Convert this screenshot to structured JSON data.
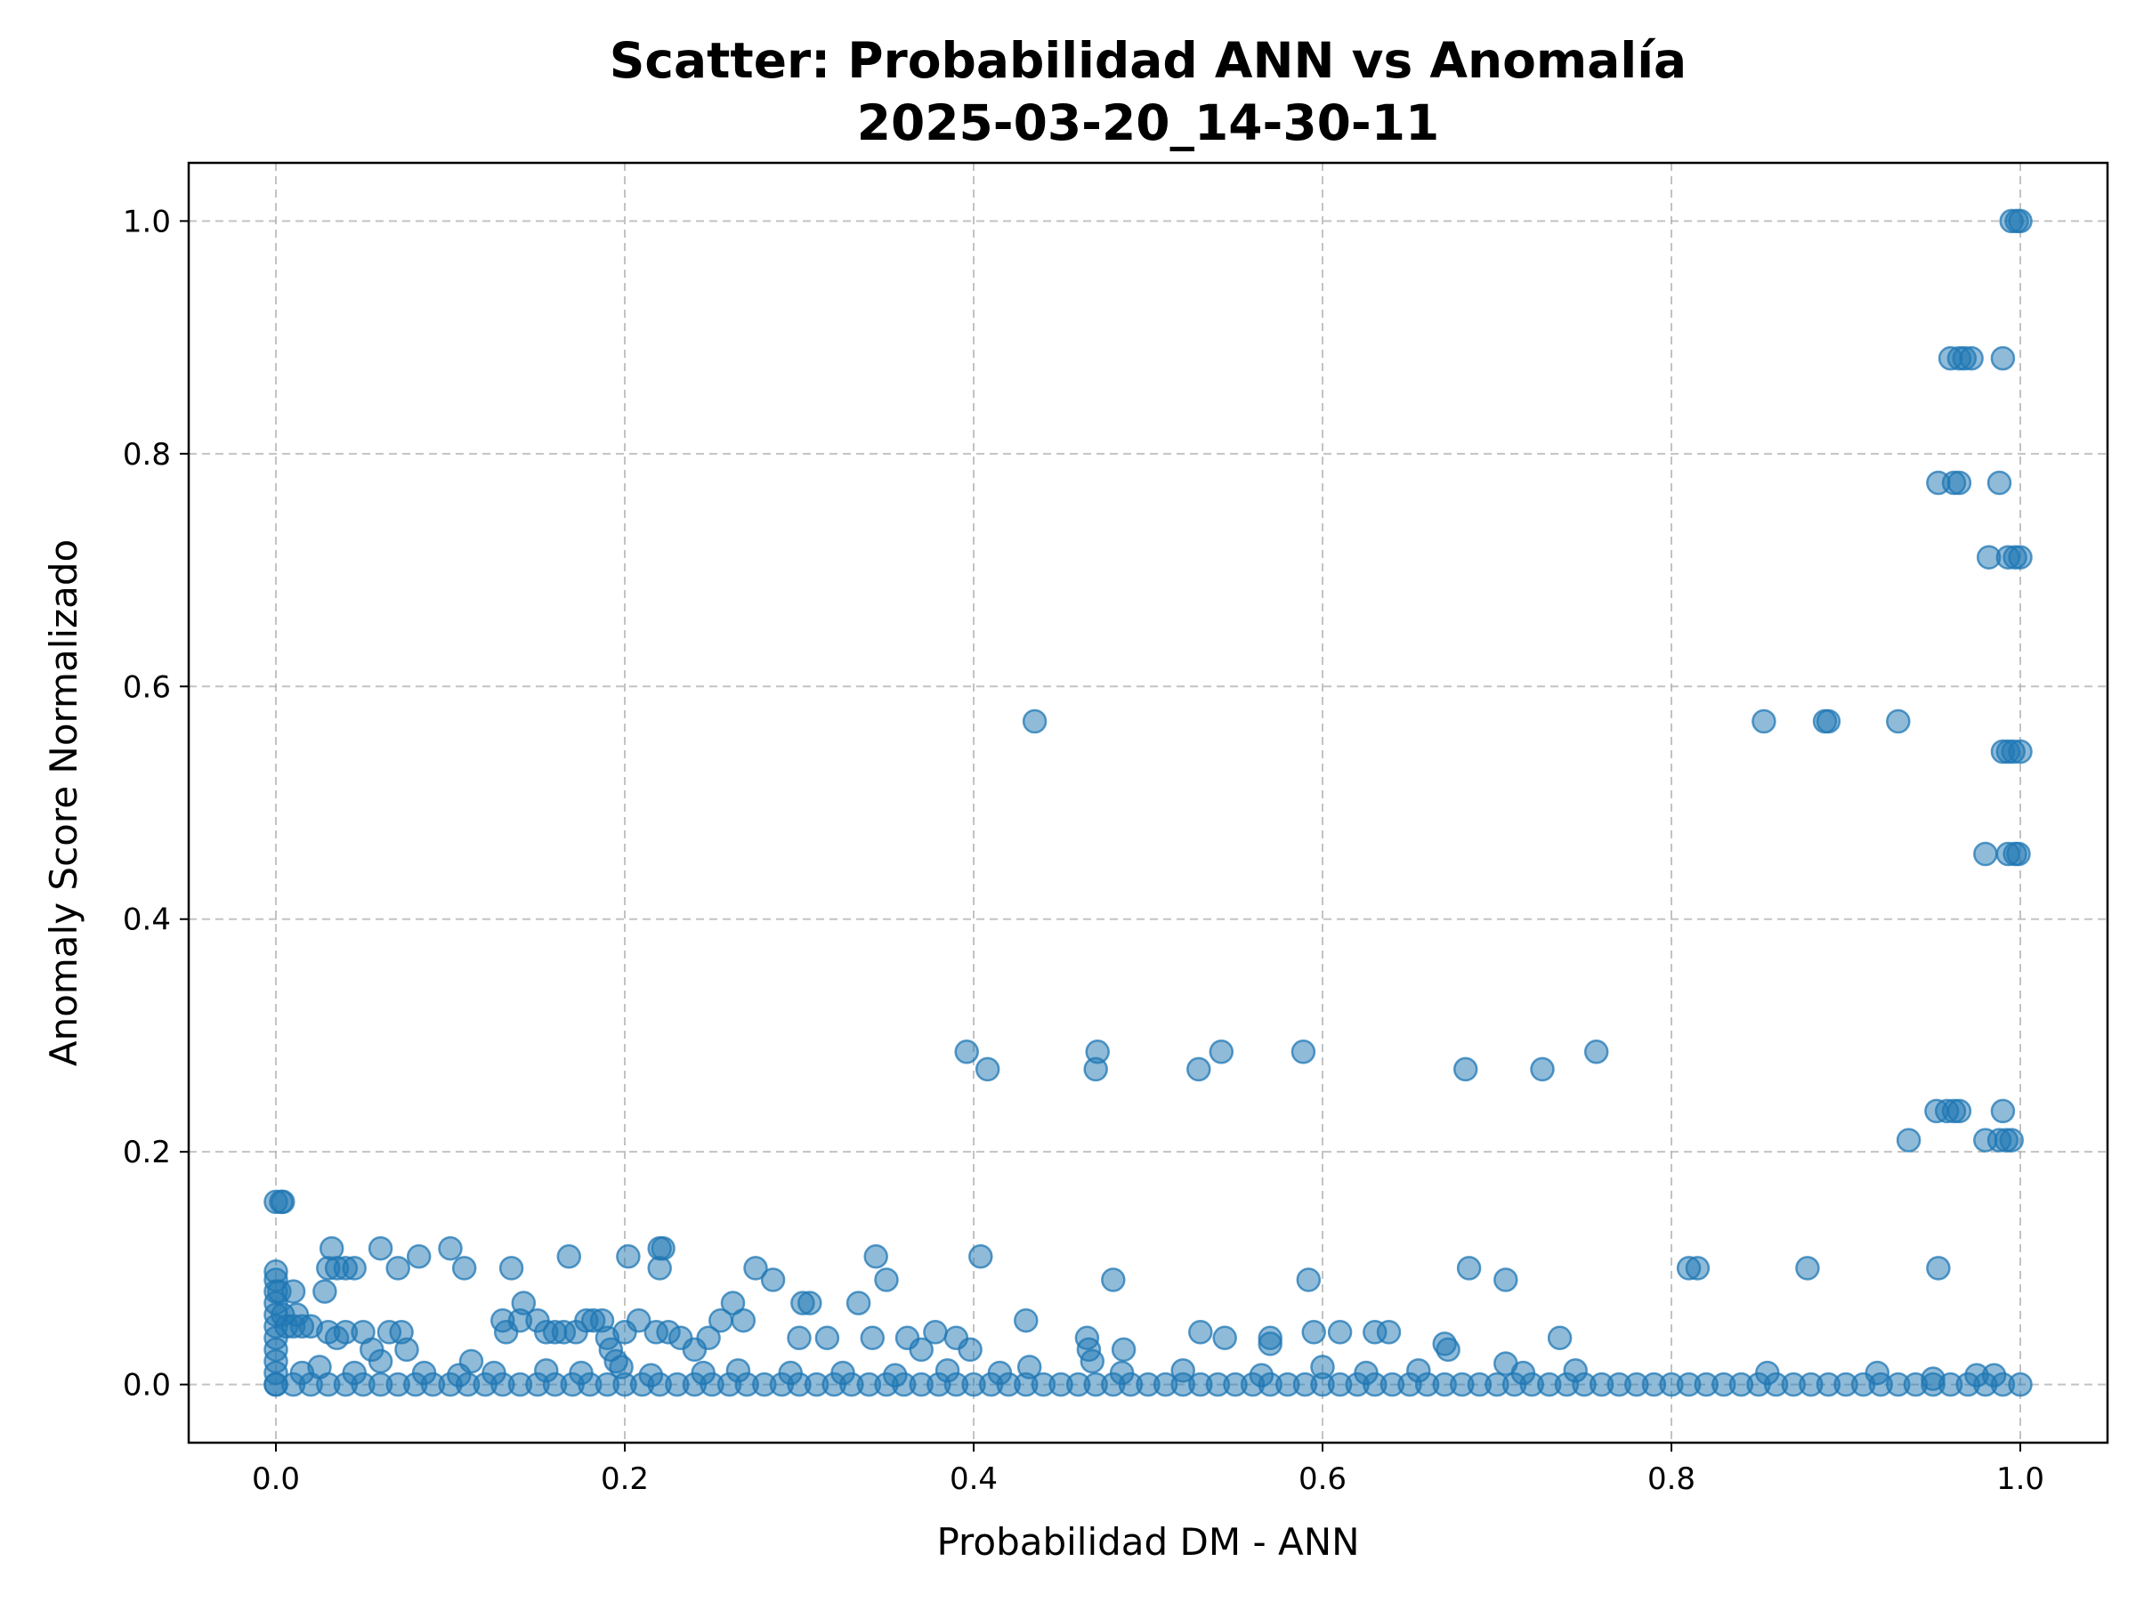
{
  "chart_data": {
    "type": "scatter",
    "title": "Scatter: Probabilidad ANN vs Anomalía",
    "subtitle": "2025-03-20_14-30-11",
    "xlabel": "Probabilidad DM - ANN",
    "ylabel": "Anomaly Score Normalizado",
    "xlim": [
      -0.05,
      1.05
    ],
    "ylim": [
      -0.05,
      1.05
    ],
    "x_ticks": [
      0.0,
      0.2,
      0.4,
      0.6,
      0.8,
      1.0
    ],
    "x_tick_labels": [
      "0.0",
      "0.2",
      "0.4",
      "0.6",
      "0.8",
      "1.0"
    ],
    "y_ticks": [
      0.0,
      0.2,
      0.4,
      0.6,
      0.8,
      1.0
    ],
    "y_tick_labels": [
      "0.0",
      "0.2",
      "0.4",
      "0.6",
      "0.8",
      "1.0"
    ],
    "grid": true,
    "point_color": "#1f77b4",
    "point_alpha": 0.5,
    "series": [
      {
        "points": [
          [
            0.0,
            0.157
          ],
          [
            0.003,
            0.157
          ],
          [
            0.004,
            0.157
          ],
          [
            0.0,
            0.097
          ],
          [
            0.0,
            0.09
          ],
          [
            0.0,
            0.08
          ],
          [
            0.0,
            0.07
          ],
          [
            0.0,
            0.06
          ],
          [
            0.0,
            0.05
          ],
          [
            0.0,
            0.04
          ],
          [
            0.0,
            0.03
          ],
          [
            0.0,
            0.02
          ],
          [
            0.0,
            0.01
          ],
          [
            0.0,
            0.0
          ],
          [
            0.002,
            0.08
          ],
          [
            0.004,
            0.06
          ],
          [
            0.006,
            0.05
          ],
          [
            0.01,
            0.08
          ],
          [
            0.01,
            0.05
          ],
          [
            0.012,
            0.06
          ],
          [
            0.015,
            0.05
          ],
          [
            0.02,
            0.05
          ],
          [
            0.028,
            0.08
          ],
          [
            0.03,
            0.1
          ],
          [
            0.032,
            0.117
          ],
          [
            0.035,
            0.1
          ],
          [
            0.04,
            0.1
          ],
          [
            0.045,
            0.1
          ],
          [
            0.03,
            0.045
          ],
          [
            0.035,
            0.04
          ],
          [
            0.04,
            0.045
          ],
          [
            0.05,
            0.045
          ],
          [
            0.055,
            0.03
          ],
          [
            0.06,
            0.117
          ],
          [
            0.065,
            0.045
          ],
          [
            0.07,
            0.1
          ],
          [
            0.072,
            0.045
          ],
          [
            0.075,
            0.03
          ],
          [
            0.082,
            0.11
          ],
          [
            0.1,
            0.117
          ],
          [
            0.108,
            0.1
          ],
          [
            0.112,
            0.02
          ],
          [
            0.13,
            0.055
          ],
          [
            0.132,
            0.045
          ],
          [
            0.135,
            0.1
          ],
          [
            0.14,
            0.055
          ],
          [
            0.142,
            0.07
          ],
          [
            0.15,
            0.055
          ],
          [
            0.155,
            0.045
          ],
          [
            0.16,
            0.045
          ],
          [
            0.165,
            0.045
          ],
          [
            0.168,
            0.11
          ],
          [
            0.172,
            0.045
          ],
          [
            0.178,
            0.055
          ],
          [
            0.182,
            0.055
          ],
          [
            0.187,
            0.055
          ],
          [
            0.19,
            0.04
          ],
          [
            0.192,
            0.03
          ],
          [
            0.195,
            0.02
          ],
          [
            0.2,
            0.045
          ],
          [
            0.202,
            0.11
          ],
          [
            0.208,
            0.055
          ],
          [
            0.218,
            0.045
          ],
          [
            0.22,
            0.117
          ],
          [
            0.22,
            0.1
          ],
          [
            0.222,
            0.117
          ],
          [
            0.225,
            0.045
          ],
          [
            0.232,
            0.04
          ],
          [
            0.24,
            0.03
          ],
          [
            0.248,
            0.04
          ],
          [
            0.255,
            0.055
          ],
          [
            0.262,
            0.07
          ],
          [
            0.268,
            0.055
          ],
          [
            0.275,
            0.1
          ],
          [
            0.285,
            0.09
          ],
          [
            0.3,
            0.04
          ],
          [
            0.302,
            0.07
          ],
          [
            0.306,
            0.07
          ],
          [
            0.316,
            0.04
          ],
          [
            0.334,
            0.07
          ],
          [
            0.342,
            0.04
          ],
          [
            0.344,
            0.11
          ],
          [
            0.35,
            0.09
          ],
          [
            0.362,
            0.04
          ],
          [
            0.37,
            0.03
          ],
          [
            0.378,
            0.045
          ],
          [
            0.39,
            0.04
          ],
          [
            0.398,
            0.03
          ],
          [
            0.404,
            0.11
          ],
          [
            0.43,
            0.055
          ],
          [
            0.465,
            0.04
          ],
          [
            0.466,
            0.03
          ],
          [
            0.48,
            0.09
          ],
          [
            0.486,
            0.03
          ],
          [
            0.53,
            0.045
          ],
          [
            0.544,
            0.04
          ],
          [
            0.57,
            0.04
          ],
          [
            0.57,
            0.035
          ],
          [
            0.592,
            0.09
          ],
          [
            0.595,
            0.045
          ],
          [
            0.61,
            0.045
          ],
          [
            0.63,
            0.045
          ],
          [
            0.638,
            0.045
          ],
          [
            0.67,
            0.035
          ],
          [
            0.672,
            0.03
          ],
          [
            0.684,
            0.1
          ],
          [
            0.705,
            0.09
          ],
          [
            0.736,
            0.04
          ],
          [
            0.81,
            0.1
          ],
          [
            0.815,
            0.1
          ],
          [
            0.878,
            0.1
          ],
          [
            0.953,
            0.1
          ],
          [
            0.396,
            0.286
          ],
          [
            0.408,
            0.271
          ],
          [
            0.471,
            0.286
          ],
          [
            0.47,
            0.271
          ],
          [
            0.529,
            0.271
          ],
          [
            0.542,
            0.286
          ],
          [
            0.589,
            0.286
          ],
          [
            0.682,
            0.271
          ],
          [
            0.726,
            0.271
          ],
          [
            0.757,
            0.286
          ],
          [
            0.435,
            0.57
          ],
          [
            0.853,
            0.57
          ],
          [
            0.888,
            0.57
          ],
          [
            0.89,
            0.57
          ],
          [
            0.93,
            0.57
          ],
          [
            0.936,
            0.21
          ],
          [
            0.952,
            0.235
          ],
          [
            0.958,
            0.235
          ],
          [
            0.962,
            0.235
          ],
          [
            0.965,
            0.235
          ],
          [
            0.98,
            0.21
          ],
          [
            0.988,
            0.21
          ],
          [
            0.99,
            0.235
          ],
          [
            0.992,
            0.21
          ],
          [
            0.995,
            0.21
          ],
          [
            0.98,
            0.456
          ],
          [
            0.993,
            0.456
          ],
          [
            0.997,
            0.456
          ],
          [
            0.999,
            0.456
          ],
          [
            0.99,
            0.544
          ],
          [
            0.993,
            0.544
          ],
          [
            0.996,
            0.544
          ],
          [
            1.0,
            0.544
          ],
          [
            0.982,
            0.711
          ],
          [
            0.993,
            0.711
          ],
          [
            0.997,
            0.711
          ],
          [
            1.0,
            0.711
          ],
          [
            0.953,
            0.775
          ],
          [
            0.962,
            0.775
          ],
          [
            0.965,
            0.775
          ],
          [
            0.988,
            0.775
          ],
          [
            0.96,
            0.882
          ],
          [
            0.965,
            0.882
          ],
          [
            0.968,
            0.882
          ],
          [
            0.972,
            0.882
          ],
          [
            0.99,
            0.882
          ],
          [
            0.995,
            1.0
          ],
          [
            0.998,
            1.0
          ],
          [
            1.0,
            1.0
          ],
          [
            0.0,
            0.0
          ],
          [
            0.01,
            0.0
          ],
          [
            0.02,
            0.0
          ],
          [
            0.03,
            0.0
          ],
          [
            0.04,
            0.0
          ],
          [
            0.05,
            0.0
          ],
          [
            0.06,
            0.0
          ],
          [
            0.07,
            0.0
          ],
          [
            0.08,
            0.0
          ],
          [
            0.09,
            0.0
          ],
          [
            0.1,
            0.0
          ],
          [
            0.11,
            0.0
          ],
          [
            0.12,
            0.0
          ],
          [
            0.13,
            0.0
          ],
          [
            0.14,
            0.0
          ],
          [
            0.15,
            0.0
          ],
          [
            0.16,
            0.0
          ],
          [
            0.17,
            0.0
          ],
          [
            0.18,
            0.0
          ],
          [
            0.19,
            0.0
          ],
          [
            0.2,
            0.0
          ],
          [
            0.21,
            0.0
          ],
          [
            0.22,
            0.0
          ],
          [
            0.23,
            0.0
          ],
          [
            0.24,
            0.0
          ],
          [
            0.25,
            0.0
          ],
          [
            0.26,
            0.0
          ],
          [
            0.27,
            0.0
          ],
          [
            0.28,
            0.0
          ],
          [
            0.29,
            0.0
          ],
          [
            0.3,
            0.0
          ],
          [
            0.31,
            0.0
          ],
          [
            0.32,
            0.0
          ],
          [
            0.33,
            0.0
          ],
          [
            0.34,
            0.0
          ],
          [
            0.35,
            0.0
          ],
          [
            0.36,
            0.0
          ],
          [
            0.37,
            0.0
          ],
          [
            0.38,
            0.0
          ],
          [
            0.39,
            0.0
          ],
          [
            0.4,
            0.0
          ],
          [
            0.41,
            0.0
          ],
          [
            0.42,
            0.0
          ],
          [
            0.43,
            0.0
          ],
          [
            0.44,
            0.0
          ],
          [
            0.45,
            0.0
          ],
          [
            0.46,
            0.0
          ],
          [
            0.47,
            0.0
          ],
          [
            0.48,
            0.0
          ],
          [
            0.49,
            0.0
          ],
          [
            0.5,
            0.0
          ],
          [
            0.51,
            0.0
          ],
          [
            0.52,
            0.0
          ],
          [
            0.53,
            0.0
          ],
          [
            0.54,
            0.0
          ],
          [
            0.55,
            0.0
          ],
          [
            0.56,
            0.0
          ],
          [
            0.57,
            0.0
          ],
          [
            0.58,
            0.0
          ],
          [
            0.59,
            0.0
          ],
          [
            0.6,
            0.0
          ],
          [
            0.61,
            0.0
          ],
          [
            0.62,
            0.0
          ],
          [
            0.63,
            0.0
          ],
          [
            0.64,
            0.0
          ],
          [
            0.65,
            0.0
          ],
          [
            0.66,
            0.0
          ],
          [
            0.67,
            0.0
          ],
          [
            0.68,
            0.0
          ],
          [
            0.69,
            0.0
          ],
          [
            0.7,
            0.0
          ],
          [
            0.71,
            0.0
          ],
          [
            0.72,
            0.0
          ],
          [
            0.73,
            0.0
          ],
          [
            0.74,
            0.0
          ],
          [
            0.75,
            0.0
          ],
          [
            0.76,
            0.0
          ],
          [
            0.77,
            0.0
          ],
          [
            0.78,
            0.0
          ],
          [
            0.79,
            0.0
          ],
          [
            0.8,
            0.0
          ],
          [
            0.81,
            0.0
          ],
          [
            0.82,
            0.0
          ],
          [
            0.83,
            0.0
          ],
          [
            0.84,
            0.0
          ],
          [
            0.85,
            0.0
          ],
          [
            0.86,
            0.0
          ],
          [
            0.87,
            0.0
          ],
          [
            0.88,
            0.0
          ],
          [
            0.89,
            0.0
          ],
          [
            0.9,
            0.0
          ],
          [
            0.91,
            0.0
          ],
          [
            0.92,
            0.0
          ],
          [
            0.93,
            0.0
          ],
          [
            0.94,
            0.0
          ],
          [
            0.95,
            0.0
          ],
          [
            0.96,
            0.0
          ],
          [
            0.97,
            0.0
          ],
          [
            0.98,
            0.0
          ],
          [
            0.99,
            0.0
          ],
          [
            1.0,
            0.0
          ],
          [
            0.015,
            0.01
          ],
          [
            0.025,
            0.015
          ],
          [
            0.045,
            0.01
          ],
          [
            0.06,
            0.02
          ],
          [
            0.085,
            0.01
          ],
          [
            0.105,
            0.008
          ],
          [
            0.125,
            0.01
          ],
          [
            0.155,
            0.012
          ],
          [
            0.175,
            0.01
          ],
          [
            0.198,
            0.015
          ],
          [
            0.215,
            0.008
          ],
          [
            0.245,
            0.01
          ],
          [
            0.265,
            0.012
          ],
          [
            0.295,
            0.01
          ],
          [
            0.325,
            0.01
          ],
          [
            0.355,
            0.008
          ],
          [
            0.385,
            0.012
          ],
          [
            0.415,
            0.01
          ],
          [
            0.432,
            0.015
          ],
          [
            0.468,
            0.02
          ],
          [
            0.485,
            0.01
          ],
          [
            0.52,
            0.012
          ],
          [
            0.565,
            0.008
          ],
          [
            0.6,
            0.015
          ],
          [
            0.625,
            0.01
          ],
          [
            0.655,
            0.012
          ],
          [
            0.705,
            0.018
          ],
          [
            0.715,
            0.01
          ],
          [
            0.745,
            0.012
          ],
          [
            0.855,
            0.01
          ],
          [
            0.918,
            0.01
          ],
          [
            0.95,
            0.005
          ],
          [
            0.975,
            0.008
          ],
          [
            0.985,
            0.008
          ]
        ]
      }
    ]
  }
}
